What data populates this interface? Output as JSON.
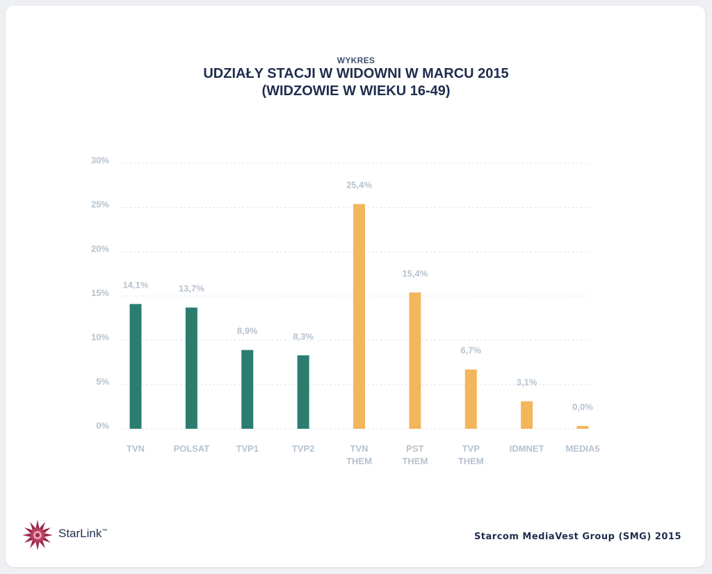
{
  "header": {
    "kicker": "WYKRES",
    "title_line1": "UDZIAŁY STACJI W WIDOWNI W MARCU 2015",
    "title_line2": "(WIDZOWIE W WIEKU 16-49)"
  },
  "chart_data": {
    "type": "bar",
    "title": "UDZIAŁY STACJI W WIDOWNI W MARCU 2015 (WIDZOWIE W WIEKU 16-49)",
    "categories": [
      [
        "TVN"
      ],
      [
        "POLSAT"
      ],
      [
        "TVP1"
      ],
      [
        "TVP2"
      ],
      [
        "TVN",
        "THEM"
      ],
      [
        "PST",
        "THEM"
      ],
      [
        "TVP",
        "THEM"
      ],
      [
        "IDMNET"
      ],
      [
        "MEDIA5"
      ]
    ],
    "values": [
      14.1,
      13.7,
      8.9,
      8.3,
      25.4,
      15.4,
      6.7,
      3.1,
      0.0
    ],
    "value_labels": [
      "14,1%",
      "13,7%",
      "8,9%",
      "8,3%",
      "25,4%",
      "15,4%",
      "6,7%",
      "3,1%",
      "0,0%"
    ],
    "colors": [
      "#2a7d6f",
      "#2a7d6f",
      "#2a7d6f",
      "#2a7d6f",
      "#f2b65c",
      "#f2b65c",
      "#f2b65c",
      "#f2b65c",
      "#f2b65c"
    ],
    "y_ticks": [
      0,
      5,
      10,
      15,
      20,
      25,
      30
    ],
    "y_tick_labels": [
      "0%",
      "5%",
      "10%",
      "15%",
      "20%",
      "25%",
      "30%"
    ],
    "ylim": [
      0,
      30
    ],
    "grid": true,
    "legend": "none",
    "xlabel": "",
    "ylabel": ""
  },
  "footer": {
    "brand": "StarLink",
    "brand_mark": "™",
    "source": "Starcom MediaVest Group (SMG) 2015"
  },
  "colors": {
    "title": "#1f2d4d",
    "axis_text": "#b6c2cf",
    "grid": "#d5dbe2"
  }
}
